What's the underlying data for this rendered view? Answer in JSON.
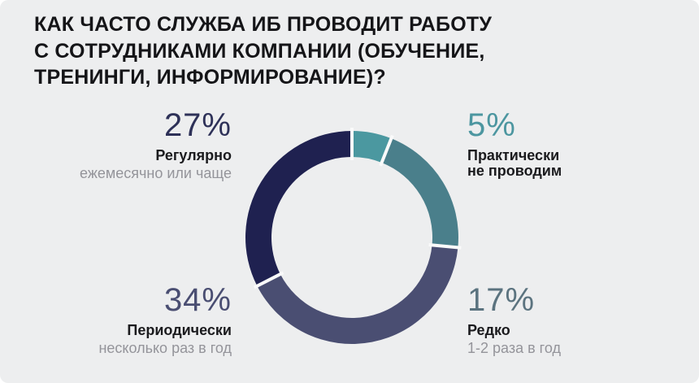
{
  "title": "КАК ЧАСТО СЛУЖБА ИБ ПРОВОДИТ РАБОТУ\nС СОТРУДНИКАМИ КОМПАНИИ (ОБУЧЕНИЕ,\nТРЕНИНГИ, ИНФОРМИРОВАНИЕ)?",
  "colors": {
    "background": "#EDEEEF",
    "title_text": "#151518",
    "label_text": "#1B1B1E",
    "sublabel_text": "#94949A"
  },
  "chart_data": {
    "type": "pie",
    "donut": true,
    "title": "КАК ЧАСТО СЛУЖБА ИБ ПРОВОДИТ РАБОТУ С СОТРУДНИКАМИ КОМПАНИИ (ОБУЧЕНИЕ, ТРЕНИНГИ, ИНФОРМИРОВАНИЕ)?",
    "unit": "%",
    "start_angle_deg": 0,
    "clockwise": true,
    "legend_position": "around-chart",
    "divider_color": "#FAFAFA",
    "slices": [
      {
        "label": "Практически не проводим",
        "value": 5,
        "color": "#4B98A0"
      },
      {
        "label": "Редко — 1-2 раза в год",
        "value": 17,
        "color": "#4A7F8B"
      },
      {
        "label": "Периодически — несколько раз в год",
        "value": 34,
        "color": "#4A4E72"
      },
      {
        "label": "Регулярно — ежемесячно или чаще",
        "value": 27,
        "color": "#1F2150"
      }
    ]
  },
  "callouts": [
    {
      "pct": "27%",
      "pct_color": "#2E3158",
      "label": "Регулярно",
      "sub": "ежемесячно или чаще"
    },
    {
      "pct": "5%",
      "pct_color": "#4C96A0",
      "label": "Практически\nне проводим",
      "sub": ""
    },
    {
      "pct": "34%",
      "pct_color": "#4A4E72",
      "label": "Периодически",
      "sub": "несколько раз в год"
    },
    {
      "pct": "17%",
      "pct_color": "#5B737F",
      "label": "Редко",
      "sub": "1-2 раза в год"
    }
  ]
}
